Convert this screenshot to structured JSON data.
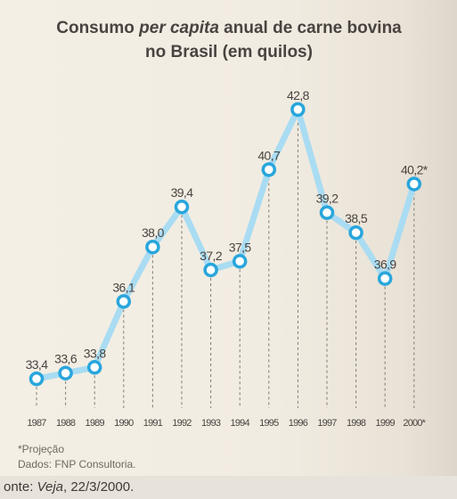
{
  "title": {
    "part1": "Consumo ",
    "italic": "per capita",
    "part2": " anual de carne bovina",
    "line2": "no Brasil (em quilos)"
  },
  "notes": {
    "projection": "*Projeção",
    "source_data": "Dados: FNP Consultoria."
  },
  "fonte": {
    "prefix": "onte: ",
    "italic": "Veja",
    "suffix": ", 22/3/2000."
  },
  "colors": {
    "line": "#a9dcf2",
    "marker_stroke": "#29a6dc",
    "marker_fill": "#ffffff",
    "text": "#4a4340",
    "dashed": "#7f7a76"
  },
  "chart_data": {
    "type": "line",
    "title": "Consumo per capita anual de carne bovina no Brasil (em quilos)",
    "categories": [
      "1987",
      "1988",
      "1989",
      "1990",
      "1991",
      "1992",
      "1993",
      "1994",
      "1995",
      "1996",
      "1997",
      "1998",
      "1999",
      "2000*"
    ],
    "values": [
      33.4,
      33.6,
      33.8,
      36.1,
      38.0,
      39.4,
      37.2,
      37.5,
      40.7,
      42.8,
      39.2,
      38.5,
      36.9,
      40.2
    ],
    "value_labels": [
      "33,4",
      "33,6",
      "33,8",
      "36,1",
      "38,0",
      "39,4",
      "37,2",
      "37,5",
      "40,7",
      "42,8",
      "39,2",
      "38,5",
      "36,9",
      "40,2*"
    ],
    "xlabel": "",
    "ylabel": "",
    "ylim": [
      33.0,
      43.2
    ],
    "grid": false,
    "dashed_drop_lines": true
  }
}
